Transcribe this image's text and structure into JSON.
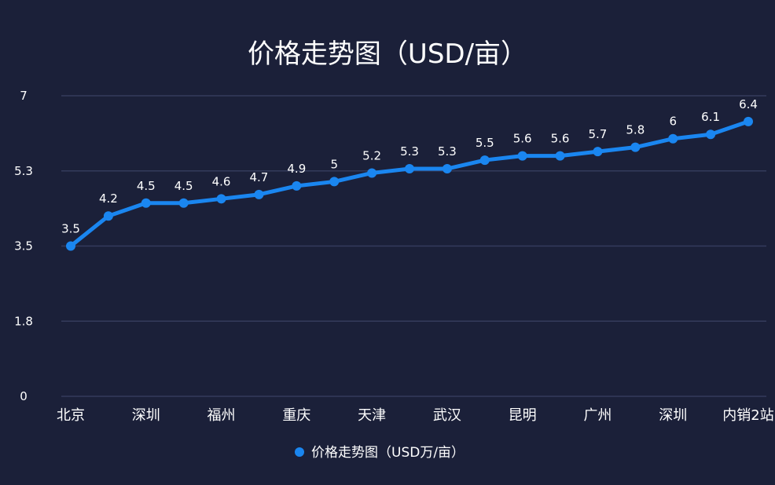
{
  "chart_data": {
    "type": "line",
    "title": "价格走势图（USD/亩）",
    "legend": "价格走势图（USD万/亩）",
    "y_ticks": [
      "0",
      "1.8",
      "3.5",
      "5.3",
      "7"
    ],
    "ylim": [
      0,
      7
    ],
    "grid": true,
    "legend_position": "bottom",
    "x_tick_labels": [
      "北京",
      "深圳",
      "福州",
      "重庆",
      "天津",
      "武汉",
      "昆明",
      "广州",
      "深圳",
      "内销2站"
    ],
    "categories": [
      "北京",
      "",
      "深圳",
      "",
      "福州",
      "",
      "重庆",
      "",
      "天津",
      "",
      "武汉",
      "",
      "昆明",
      "",
      "广州",
      "",
      "深圳",
      "",
      "内销2站"
    ],
    "series": [
      {
        "name": "价格走势图（USD万/亩）",
        "values": [
          3.5,
          4.2,
          4.5,
          4.5,
          4.6,
          4.7,
          4.9,
          5,
          5.2,
          5.3,
          5.3,
          5.5,
          5.6,
          5.6,
          5.7,
          5.8,
          6,
          6.1,
          6.4
        ],
        "labels": [
          "3.5",
          "4.2",
          "4.5",
          "4.5",
          "4.6",
          "4.7",
          "4.9",
          "5",
          "5.2",
          "5.3",
          "5.3",
          "5.5",
          "5.6",
          "5.6",
          "5.7",
          "5.8",
          "6",
          "6.1",
          "6.4"
        ]
      }
    ],
    "colors": {
      "background": "#1b2039",
      "line": "#1a86f0",
      "grid": "#343b5c"
    }
  }
}
